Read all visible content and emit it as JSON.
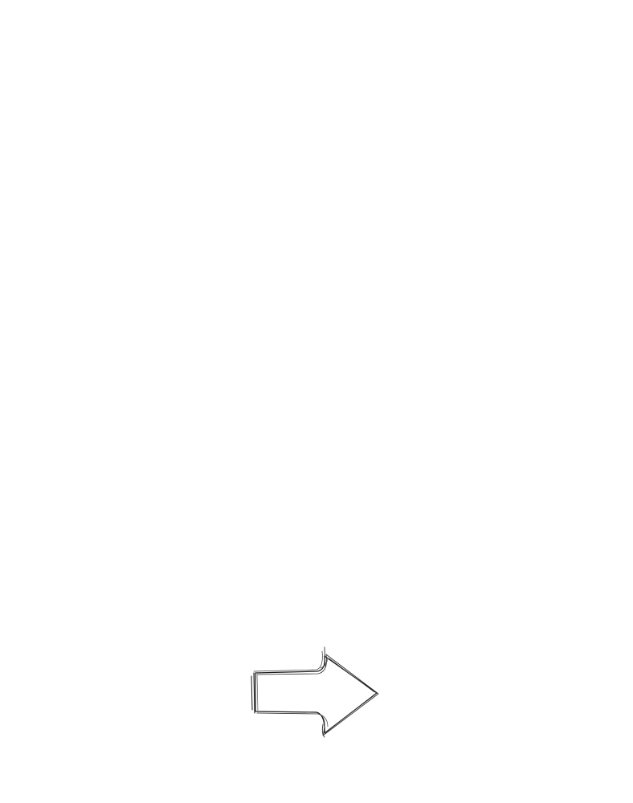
{
  "canvas": {
    "background": "#ffffff"
  },
  "arrow": {
    "icon": "right-arrow-icon",
    "direction": "right",
    "stroke_color": "#1a1a1a",
    "fill_color": "#ffffff",
    "style": "hand-drawn sketch"
  }
}
